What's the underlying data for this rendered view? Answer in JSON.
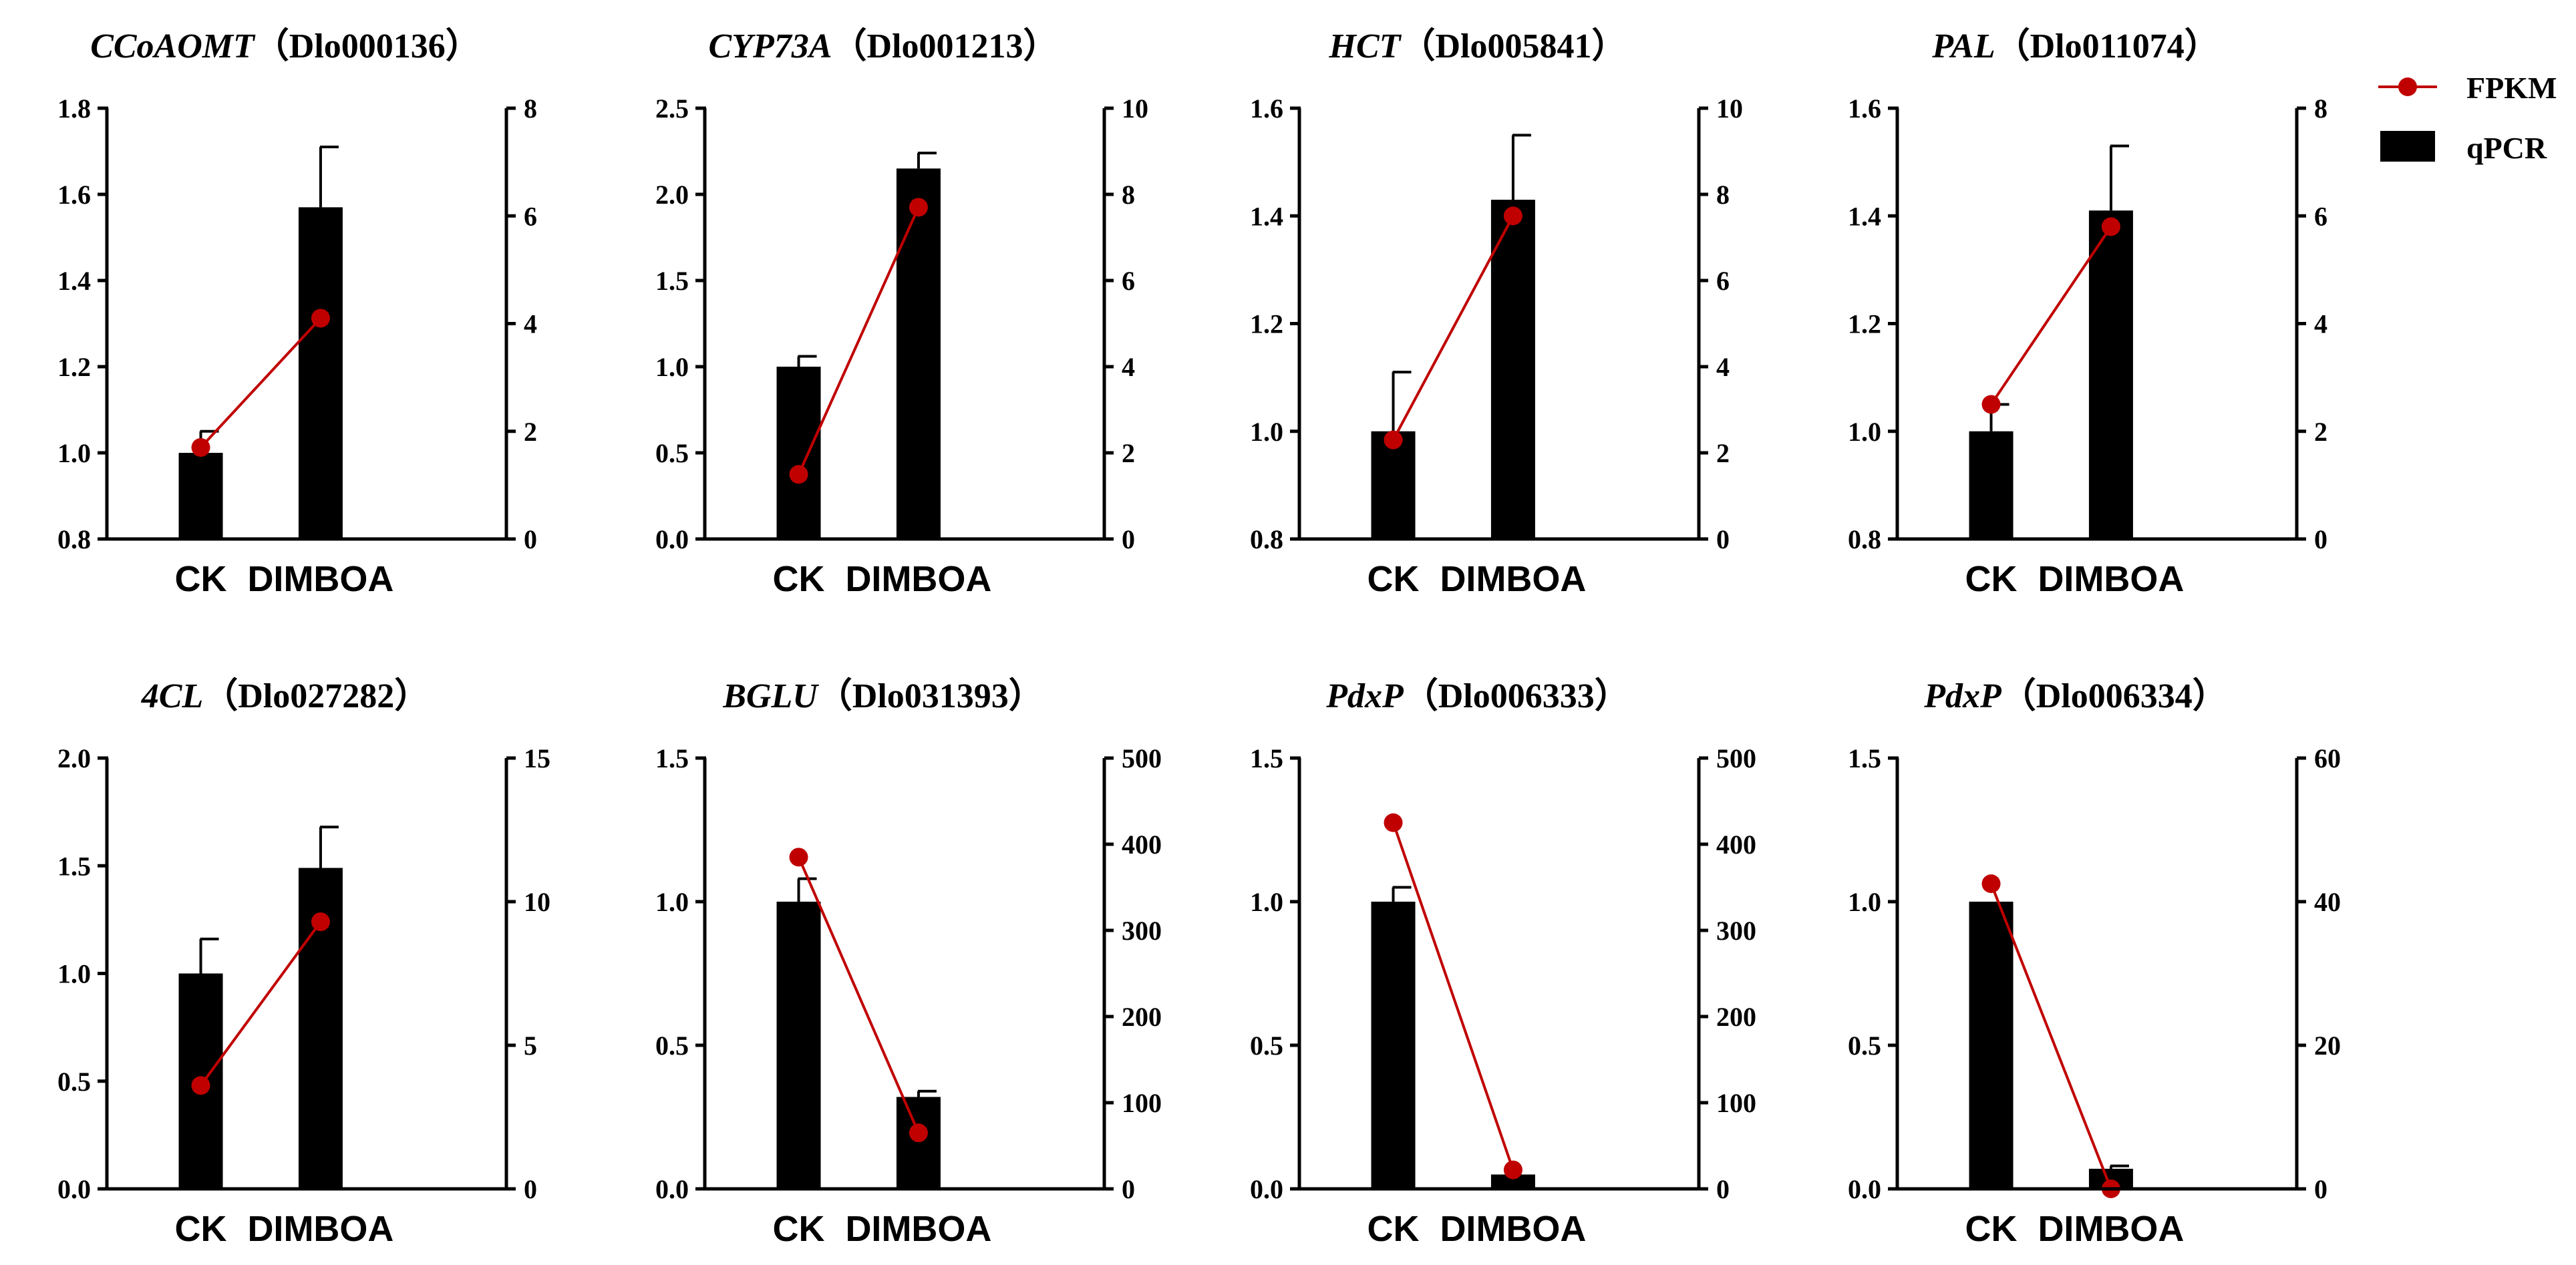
{
  "colors": {
    "bar": "#000000",
    "line": "#c00000",
    "axis": "#000000"
  },
  "legend": {
    "items": [
      {
        "label": "FPKM",
        "kind": "line-marker"
      },
      {
        "label": "qPCR",
        "kind": "bar"
      }
    ]
  },
  "chart_data": [
    {
      "type": "bar+line",
      "gene": "CCoAOMT",
      "id": "（Dlo000136）",
      "categories": [
        "CK",
        "DIMBOA"
      ],
      "left_axis": {
        "min": 0.8,
        "max": 1.8,
        "ticks": [
          "0.8",
          "1.0",
          "1.2",
          "1.4",
          "1.6",
          "1.8"
        ]
      },
      "right_axis": {
        "min": 0,
        "max": 8,
        "ticks": [
          "0",
          "2",
          "4",
          "6",
          "8"
        ]
      },
      "qpcr": [
        1.0,
        1.57
      ],
      "qpcr_err": [
        0.05,
        0.14
      ],
      "fpkm": [
        1.7,
        4.1
      ]
    },
    {
      "type": "bar+line",
      "gene": "CYP73A",
      "id": "（Dlo001213）",
      "categories": [
        "CK",
        "DIMBOA"
      ],
      "left_axis": {
        "min": 0.0,
        "max": 2.5,
        "ticks": [
          "0.0",
          "0.5",
          "1.0",
          "1.5",
          "2.0",
          "2.5"
        ]
      },
      "right_axis": {
        "min": 0,
        "max": 10,
        "ticks": [
          "0",
          "2",
          "4",
          "6",
          "8",
          "10"
        ]
      },
      "qpcr": [
        1.0,
        2.15
      ],
      "qpcr_err": [
        0.06,
        0.09
      ],
      "fpkm": [
        1.5,
        7.7
      ]
    },
    {
      "type": "bar+line",
      "gene": "HCT",
      "id": "（Dlo005841）",
      "categories": [
        "CK",
        "DIMBOA"
      ],
      "left_axis": {
        "min": 0.8,
        "max": 1.6,
        "ticks": [
          "0.8",
          "1.0",
          "1.2",
          "1.4",
          "1.6"
        ]
      },
      "right_axis": {
        "min": 0,
        "max": 10,
        "ticks": [
          "0",
          "2",
          "4",
          "6",
          "8",
          "10"
        ]
      },
      "qpcr": [
        1.0,
        1.43
      ],
      "qpcr_err": [
        0.11,
        0.12
      ],
      "fpkm": [
        2.3,
        7.5
      ]
    },
    {
      "type": "bar+line",
      "gene": "PAL",
      "id": "（Dlo011074）",
      "categories": [
        "CK",
        "DIMBOA"
      ],
      "left_axis": {
        "min": 0.8,
        "max": 1.6,
        "ticks": [
          "0.8",
          "1.0",
          "1.2",
          "1.4",
          "1.6"
        ]
      },
      "right_axis": {
        "min": 0,
        "max": 8,
        "ticks": [
          "0",
          "2",
          "4",
          "6",
          "8"
        ]
      },
      "qpcr": [
        1.0,
        1.41
      ],
      "qpcr_err": [
        0.05,
        0.12
      ],
      "fpkm": [
        2.5,
        5.8
      ]
    },
    {
      "type": "bar+line",
      "gene": "4CL",
      "id": "（Dlo027282）",
      "categories": [
        "CK",
        "DIMBOA"
      ],
      "left_axis": {
        "min": 0.0,
        "max": 2.0,
        "ticks": [
          "0.0",
          "0.5",
          "1.0",
          "1.5",
          "2.0"
        ]
      },
      "right_axis": {
        "min": 0,
        "max": 15,
        "ticks": [
          "0",
          "5",
          "10",
          "15"
        ]
      },
      "qpcr": [
        1.0,
        1.49
      ],
      "qpcr_err": [
        0.16,
        0.19
      ],
      "fpkm": [
        3.6,
        9.3
      ]
    },
    {
      "type": "bar+line",
      "gene": "BGLU",
      "id": "（Dlo031393）",
      "categories": [
        "CK",
        "DIMBOA"
      ],
      "left_axis": {
        "min": 0.0,
        "max": 1.5,
        "ticks": [
          "0.0",
          "0.5",
          "1.0",
          "1.5"
        ]
      },
      "right_axis": {
        "min": 0,
        "max": 500,
        "ticks": [
          "0",
          "100",
          "200",
          "300",
          "400",
          "500"
        ]
      },
      "qpcr": [
        1.0,
        0.32
      ],
      "qpcr_err": [
        0.08,
        0.02
      ],
      "fpkm": [
        385,
        65
      ]
    },
    {
      "type": "bar+line",
      "gene": "PdxP",
      "id": "（Dlo006333）",
      "categories": [
        "CK",
        "DIMBOA"
      ],
      "left_axis": {
        "min": 0.0,
        "max": 1.5,
        "ticks": [
          "0.0",
          "0.5",
          "1.0",
          "1.5"
        ]
      },
      "right_axis": {
        "min": 0,
        "max": 500,
        "ticks": [
          "0",
          "100",
          "200",
          "300",
          "400",
          "500"
        ]
      },
      "qpcr": [
        1.0,
        0.05
      ],
      "qpcr_err": [
        0.05,
        0.0
      ],
      "fpkm": [
        425,
        22
      ]
    },
    {
      "type": "bar+line",
      "gene": "PdxP",
      "id": "（Dlo006334）",
      "categories": [
        "CK",
        "DIMBOA"
      ],
      "left_axis": {
        "min": 0.0,
        "max": 1.5,
        "ticks": [
          "0.0",
          "0.5",
          "1.0",
          "1.5"
        ]
      },
      "right_axis": {
        "min": 0,
        "max": 60,
        "ticks": [
          "0",
          "20",
          "40",
          "60"
        ]
      },
      "qpcr": [
        1.0,
        0.07
      ],
      "qpcr_err": [
        0.0,
        0.01
      ],
      "fpkm": [
        42.5,
        0
      ]
    }
  ]
}
